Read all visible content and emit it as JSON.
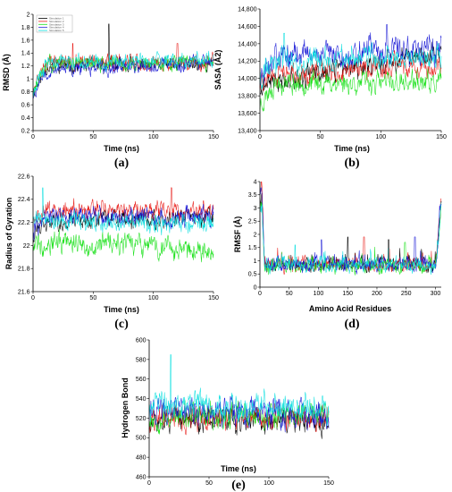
{
  "colors": {
    "black": "#000000",
    "red": "#e8201c",
    "green": "#1ee11e",
    "blue": "#1a1ad6",
    "cyan": "#10e0e0"
  },
  "chart_data": [
    {
      "id": "a",
      "type": "line",
      "caption": "(a)",
      "xlabel": "Time (ns)",
      "ylabel": "RMSD (Å)",
      "xlim": [
        0,
        150
      ],
      "ylim": [
        0.2,
        2
      ],
      "xticks": [
        0,
        50,
        100,
        150
      ],
      "yticks": [
        0.2,
        0.4,
        0.6,
        0.8,
        1,
        1.2,
        1.4,
        1.6,
        1.8,
        2
      ],
      "legend": {
        "position": "top-left",
        "entries": [
          "Simulation 1",
          "Simulation 2",
          "Simulation 3",
          "Simulation 4",
          "Simulation 5"
        ]
      },
      "series": [
        {
          "color": "black",
          "start": 0.8,
          "mean": 1.2,
          "end": 1.22,
          "noise": 0.08,
          "spikes": [
            {
              "x": 63,
              "y": 1.85
            }
          ],
          "seed": 11
        },
        {
          "color": "red",
          "start": 0.85,
          "mean": 1.25,
          "end": 1.25,
          "noise": 0.09,
          "spikes": [
            {
              "x": 33,
              "y": 1.55
            },
            {
              "x": 120,
              "y": 1.55
            }
          ],
          "seed": 12
        },
        {
          "color": "green",
          "start": 0.8,
          "mean": 1.22,
          "end": 1.25,
          "noise": 0.08,
          "spikes": [],
          "seed": 13
        },
        {
          "color": "blue",
          "start": 0.75,
          "mean": 1.12,
          "end": 1.25,
          "noise": 0.08,
          "spikes": [],
          "seed": 14
        },
        {
          "color": "cyan",
          "start": 0.82,
          "mean": 1.25,
          "end": 1.3,
          "noise": 0.08,
          "spikes": [],
          "seed": 15
        }
      ]
    },
    {
      "id": "b",
      "type": "line",
      "caption": "(b)",
      "xlabel": "Time (ns)",
      "ylabel": "SASA (Å2)",
      "xlim": [
        0,
        150
      ],
      "ylim": [
        13400,
        14800
      ],
      "xticks": [
        0,
        50,
        100,
        150
      ],
      "yticks": [
        13400,
        13600,
        13800,
        14000,
        14200,
        14400,
        14600,
        14800
      ],
      "yticklabels": [
        "13,400",
        "13,600",
        "13,800",
        "14,000",
        "14,200",
        "14,400",
        "14,600",
        "14,800"
      ],
      "series": [
        {
          "color": "black",
          "start": 13900,
          "mean": 13950,
          "end": 14300,
          "noise": 90,
          "spikes": [],
          "seed": 21
        },
        {
          "color": "red",
          "start": 13950,
          "mean": 14050,
          "end": 14150,
          "noise": 90,
          "spikes": [],
          "seed": 22
        },
        {
          "color": "green",
          "start": 13700,
          "mean": 13950,
          "end": 13950,
          "noise": 90,
          "spikes": [],
          "seed": 23
        },
        {
          "color": "blue",
          "start": 14000,
          "mean": 14250,
          "end": 14350,
          "noise": 110,
          "spikes": [
            {
              "x": 105,
              "y": 14620
            }
          ],
          "seed": 24
        },
        {
          "color": "cyan",
          "start": 14000,
          "mean": 14200,
          "end": 14250,
          "noise": 100,
          "spikes": [
            {
              "x": 20,
              "y": 14520
            }
          ],
          "seed": 25
        }
      ]
    },
    {
      "id": "c",
      "type": "line",
      "caption": "(c)",
      "xlabel": "Time (ns)",
      "ylabel": "Radius of Gyration",
      "xlim": [
        0,
        150
      ],
      "ylim": [
        21.6,
        22.6
      ],
      "xticks": [
        0,
        50,
        100,
        150
      ],
      "yticks": [
        21.6,
        21.8,
        22,
        22.2,
        22.4,
        22.6
      ],
      "series": [
        {
          "color": "black",
          "start": 22.1,
          "mean": 22.2,
          "end": 22.25,
          "noise": 0.06,
          "spikes": [],
          "seed": 31
        },
        {
          "color": "red",
          "start": 22.2,
          "mean": 22.3,
          "end": 22.3,
          "noise": 0.06,
          "spikes": [
            {
              "x": 115,
              "y": 22.5
            }
          ],
          "seed": 32
        },
        {
          "color": "green",
          "start": 22.0,
          "mean": 22.05,
          "end": 21.95,
          "noise": 0.07,
          "spikes": [],
          "seed": 33
        },
        {
          "color": "blue",
          "start": 22.15,
          "mean": 22.25,
          "end": 22.25,
          "noise": 0.06,
          "spikes": [],
          "seed": 34
        },
        {
          "color": "cyan",
          "start": 22.2,
          "mean": 22.2,
          "end": 22.2,
          "noise": 0.06,
          "spikes": [
            {
              "x": 8,
              "y": 22.5
            }
          ],
          "seed": 35
        }
      ]
    },
    {
      "id": "d",
      "type": "line",
      "caption": "(d)",
      "xlabel": "Amino Acid Residues",
      "ylabel": "RMSF (Å)",
      "xlim": [
        0,
        310
      ],
      "ylim": [
        0,
        4
      ],
      "xticks": [
        0,
        50,
        100,
        150,
        200,
        250,
        300
      ],
      "yticks": [
        0,
        0.5,
        1,
        1.5,
        2,
        2.5,
        3,
        3.5,
        4
      ],
      "series": [
        {
          "color": "black",
          "start": 3.4,
          "mean": 0.85,
          "end": 3.2,
          "noise": 0.2,
          "spikes": [
            {
              "x": 150,
              "y": 1.9
            },
            {
              "x": 220,
              "y": 1.8
            }
          ],
          "seed": 41
        },
        {
          "color": "red",
          "start": 3.8,
          "mean": 0.85,
          "end": 3.3,
          "noise": 0.2,
          "spikes": [
            {
              "x": 178,
              "y": 1.9
            }
          ],
          "seed": 42
        },
        {
          "color": "green",
          "start": 3.2,
          "mean": 0.8,
          "end": 3.1,
          "noise": 0.2,
          "spikes": [
            {
              "x": 248,
              "y": 1.7
            }
          ],
          "seed": 43
        },
        {
          "color": "blue",
          "start": 3.5,
          "mean": 0.85,
          "end": 3.35,
          "noise": 0.2,
          "spikes": [
            {
              "x": 105,
              "y": 1.8
            },
            {
              "x": 265,
              "y": 1.9
            }
          ],
          "seed": 44
        },
        {
          "color": "cyan",
          "start": 3.0,
          "mean": 0.85,
          "end": 3.3,
          "noise": 0.2,
          "spikes": [
            {
              "x": 60,
              "y": 1.6
            }
          ],
          "seed": 45
        }
      ]
    },
    {
      "id": "e",
      "type": "line",
      "caption": "(e)",
      "xlabel": "Time (ns)",
      "ylabel": "Hydrogen Bond",
      "xlim": [
        0,
        150
      ],
      "ylim": [
        460,
        600
      ],
      "xticks": [
        0,
        50,
        100,
        150
      ],
      "yticks": [
        460,
        480,
        500,
        520,
        540,
        560,
        580,
        600
      ],
      "series": [
        {
          "color": "black",
          "start": 510,
          "mean": 520,
          "end": 515,
          "noise": 9,
          "spikes": [],
          "seed": 51
        },
        {
          "color": "red",
          "start": 515,
          "mean": 522,
          "end": 520,
          "noise": 9,
          "spikes": [],
          "seed": 52
        },
        {
          "color": "green",
          "start": 520,
          "mean": 520,
          "end": 525,
          "noise": 9,
          "spikes": [],
          "seed": 53
        },
        {
          "color": "blue",
          "start": 525,
          "mean": 530,
          "end": 520,
          "noise": 10,
          "spikes": [],
          "seed": 54
        },
        {
          "color": "cyan",
          "start": 535,
          "mean": 535,
          "end": 530,
          "noise": 10,
          "spikes": [
            {
              "x": 18,
              "y": 585
            }
          ],
          "seed": 55
        }
      ]
    }
  ]
}
